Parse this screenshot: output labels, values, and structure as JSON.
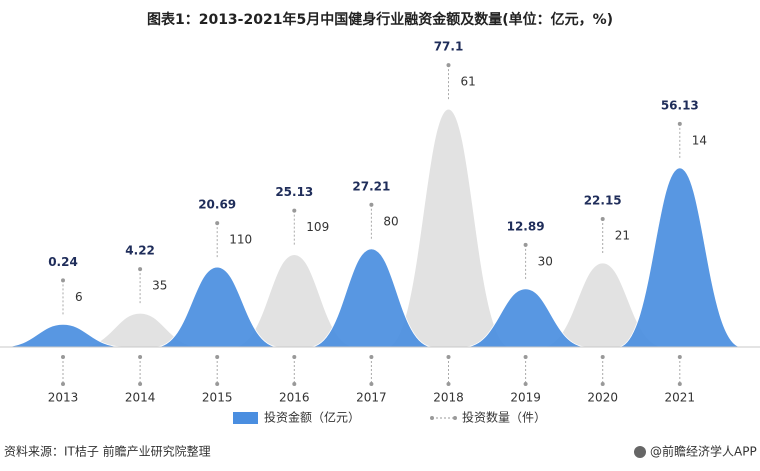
{
  "chart_data": {
    "type": "peak",
    "title": "图表1：2013-2021年5月中国健身行业融资金额及数量(单位：亿元，%)",
    "categories": [
      "2013",
      "2014",
      "2015",
      "2016",
      "2017",
      "2018",
      "2019",
      "2020",
      "2021"
    ],
    "series": [
      {
        "name": "投资金额（亿元）",
        "color": "#4a8ee0",
        "point_colors": [
          "#4a8ee0",
          "#e0e0e0",
          "#4a8ee0",
          "#e0e0e0",
          "#4a8ee0",
          "#e0e0e0",
          "#4a8ee0",
          "#e0e0e0",
          "#4a8ee0"
        ],
        "values": [
          0.24,
          4.22,
          20.69,
          25.13,
          27.21,
          77.1,
          12.89,
          22.15,
          56.13
        ]
      },
      {
        "name": "投资数量（件）",
        "color": "#9a9a9a",
        "values": [
          6,
          35,
          110,
          109,
          80,
          61,
          30,
          21,
          14
        ]
      }
    ],
    "source": "资料来源：IT桔子 前瞻产业研究院整理",
    "credit": "@前瞻经济学人APP"
  }
}
